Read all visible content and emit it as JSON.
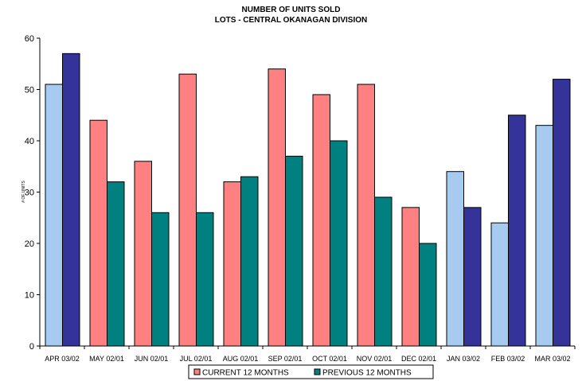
{
  "chart_data": {
    "type": "bar",
    "title": "NUMBER OF UNITS SOLD",
    "subtitle": "LOTS - CENTRAL OKANAGAN DIVISION",
    "ylabel": "# OF UNITS",
    "xlabel": "",
    "ylim": [
      0,
      60
    ],
    "yticks": [
      0,
      10,
      20,
      30,
      40,
      50,
      60
    ],
    "grid": false,
    "legend_position": "bottom",
    "categories": [
      "APR 03/02",
      "MAY 02/01",
      "JUN 02/01",
      "JUL 02/01",
      "AUG 02/01",
      "SEP 02/01",
      "OCT 02/01",
      "NOV 02/01",
      "DEC 02/01",
      "JAN 03/02",
      "FEB 03/02",
      "MAR 03/02"
    ],
    "series": [
      {
        "name": "CURRENT 12 MONTHS",
        "values": [
          51,
          44,
          36,
          53,
          32,
          54,
          49,
          51,
          27,
          34,
          24,
          43
        ],
        "colors": [
          "#a6caf0",
          "#ff8080",
          "#ff8080",
          "#ff8080",
          "#ff8080",
          "#ff8080",
          "#ff8080",
          "#ff8080",
          "#ff8080",
          "#a6caf0",
          "#a6caf0",
          "#a6caf0"
        ]
      },
      {
        "name": "PREVIOUS 12 MONTHS",
        "values": [
          57,
          32,
          26,
          26,
          33,
          37,
          40,
          29,
          20,
          27,
          45,
          52
        ],
        "colors": [
          "#333399",
          "#008080",
          "#008080",
          "#008080",
          "#008080",
          "#008080",
          "#008080",
          "#008080",
          "#008080",
          "#333399",
          "#333399",
          "#333399"
        ]
      }
    ],
    "legend": [
      {
        "label": "CURRENT 12 MONTHS",
        "color": "#ff8080"
      },
      {
        "label": "PREVIOUS 12 MONTHS",
        "color": "#008080"
      }
    ]
  }
}
